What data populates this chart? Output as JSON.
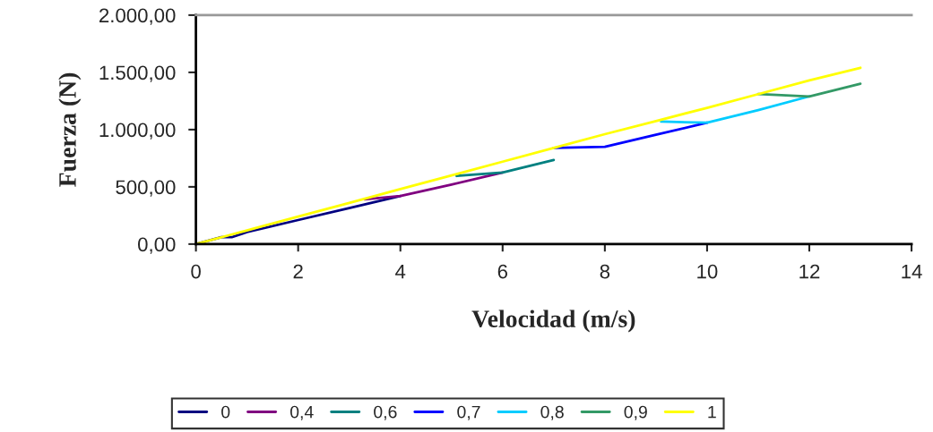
{
  "chart_data": {
    "type": "line",
    "xlabel": "Velocidad (m/s)",
    "ylabel": "Fuerza (N)",
    "xlim": [
      0,
      14
    ],
    "xticks": [
      0,
      2,
      4,
      6,
      8,
      10,
      12,
      14
    ],
    "ylim": [
      0,
      2000
    ],
    "yticks": [
      {
        "value": 0,
        "label": "0,00"
      },
      {
        "value": 500,
        "label": "500,00"
      },
      {
        "value": 1000,
        "label": "1.000,00"
      },
      {
        "value": 1500,
        "label": "1.500,00"
      },
      {
        "value": 2000,
        "label": "2.000,00"
      }
    ],
    "grid": false,
    "legend": "bottom",
    "marker": "none",
    "line_style": "solid",
    "series": [
      {
        "name": "0",
        "color": "#000080",
        "x": [
          0,
          0.5,
          0.7,
          0.9,
          1,
          2,
          3,
          4
        ],
        "values": [
          0,
          60,
          60,
          90,
          105,
          210,
          315,
          420
        ]
      },
      {
        "name": "0,4",
        "color": "#800080",
        "x": [
          3.3,
          4,
          5,
          6
        ],
        "values": [
          390,
          420,
          520,
          625
        ]
      },
      {
        "name": "0,6",
        "color": "#008080",
        "x": [
          5.1,
          6,
          7
        ],
        "values": [
          595,
          625,
          735
        ]
      },
      {
        "name": "0,7",
        "color": "#0000ff",
        "x": [
          7,
          8,
          9,
          10
        ],
        "values": [
          840,
          850,
          955,
          1060
        ]
      },
      {
        "name": "0,8",
        "color": "#00ccff",
        "x": [
          9.1,
          10,
          11,
          12
        ],
        "values": [
          1070,
          1060,
          1170,
          1290
        ]
      },
      {
        "name": "0,9",
        "color": "#339966",
        "x": [
          11,
          12,
          13
        ],
        "values": [
          1310,
          1290,
          1400
        ]
      },
      {
        "name": "1",
        "color": "#ffff00",
        "x": [
          0,
          1,
          2,
          3,
          4,
          5,
          6,
          7,
          8,
          9,
          10,
          11,
          12,
          13
        ],
        "values": [
          0,
          120,
          240,
          360,
          480,
          600,
          720,
          840,
          960,
          1075,
          1190,
          1310,
          1430,
          1540
        ]
      }
    ]
  }
}
